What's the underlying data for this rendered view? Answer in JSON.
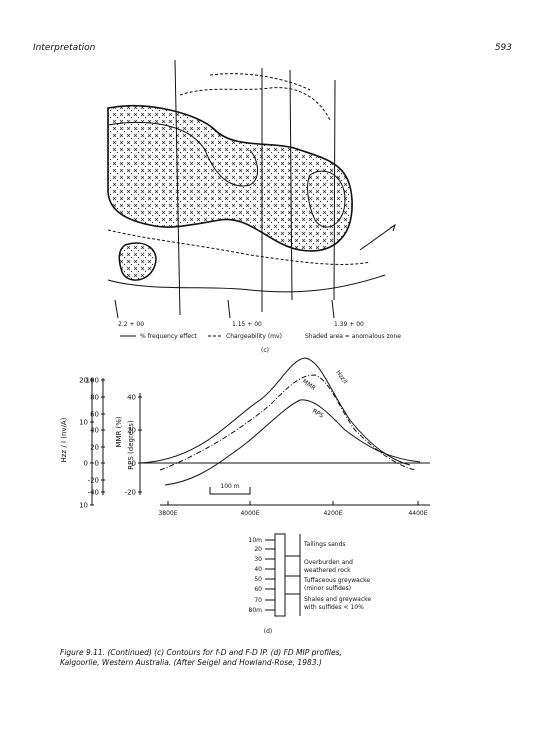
{
  "header": {
    "title": "Interpretation",
    "page": "593"
  },
  "figure_c": {
    "lines": [
      "2.2 + 00",
      "1.15 + 00",
      "1.39 + 00"
    ],
    "legend": [
      "% frequency effect",
      "Chargeability (mv)",
      "Shaded area = anomalous zone"
    ],
    "panel": "(c)"
  },
  "figure_d": {
    "axis_hzz": {
      "label": "Hzz / I (nv/A)",
      "ticks": [
        "20",
        "10",
        "0",
        "10"
      ]
    },
    "axis_mmr": {
      "label": "MMR (%)",
      "ticks": [
        "100",
        "80",
        "60",
        "40",
        "20",
        "0",
        "-20",
        "-40"
      ]
    },
    "axis_rps": {
      "label": "RPS (degrees)",
      "ticks": [
        "40",
        "20",
        "0",
        "-20"
      ]
    },
    "xticks": [
      "3800E",
      "4000E",
      "4200E",
      "4400E"
    ],
    "scale": "100 m",
    "curves": [
      "MMR",
      "Hzz/I",
      "RPS"
    ],
    "log": {
      "depths": [
        "10m",
        "20",
        "30",
        "40",
        "50",
        "60",
        "70",
        "80m"
      ],
      "units": [
        "Tailings sands",
        "Overburden and",
        "weathered rock",
        "Tuffaceous greywacke",
        "(minor sulfides)",
        "Shales and greywacke",
        "with sulfides < 10%"
      ]
    },
    "panel": "(d)"
  },
  "caption": [
    "Figure 9.11. (Continued) (c) Contours for f-D and F-D IP. (d) FD MIP profiles,",
    "Kalgoorlie, Western Australia. (After Seigel and Howland-Rose, 1983.)"
  ]
}
